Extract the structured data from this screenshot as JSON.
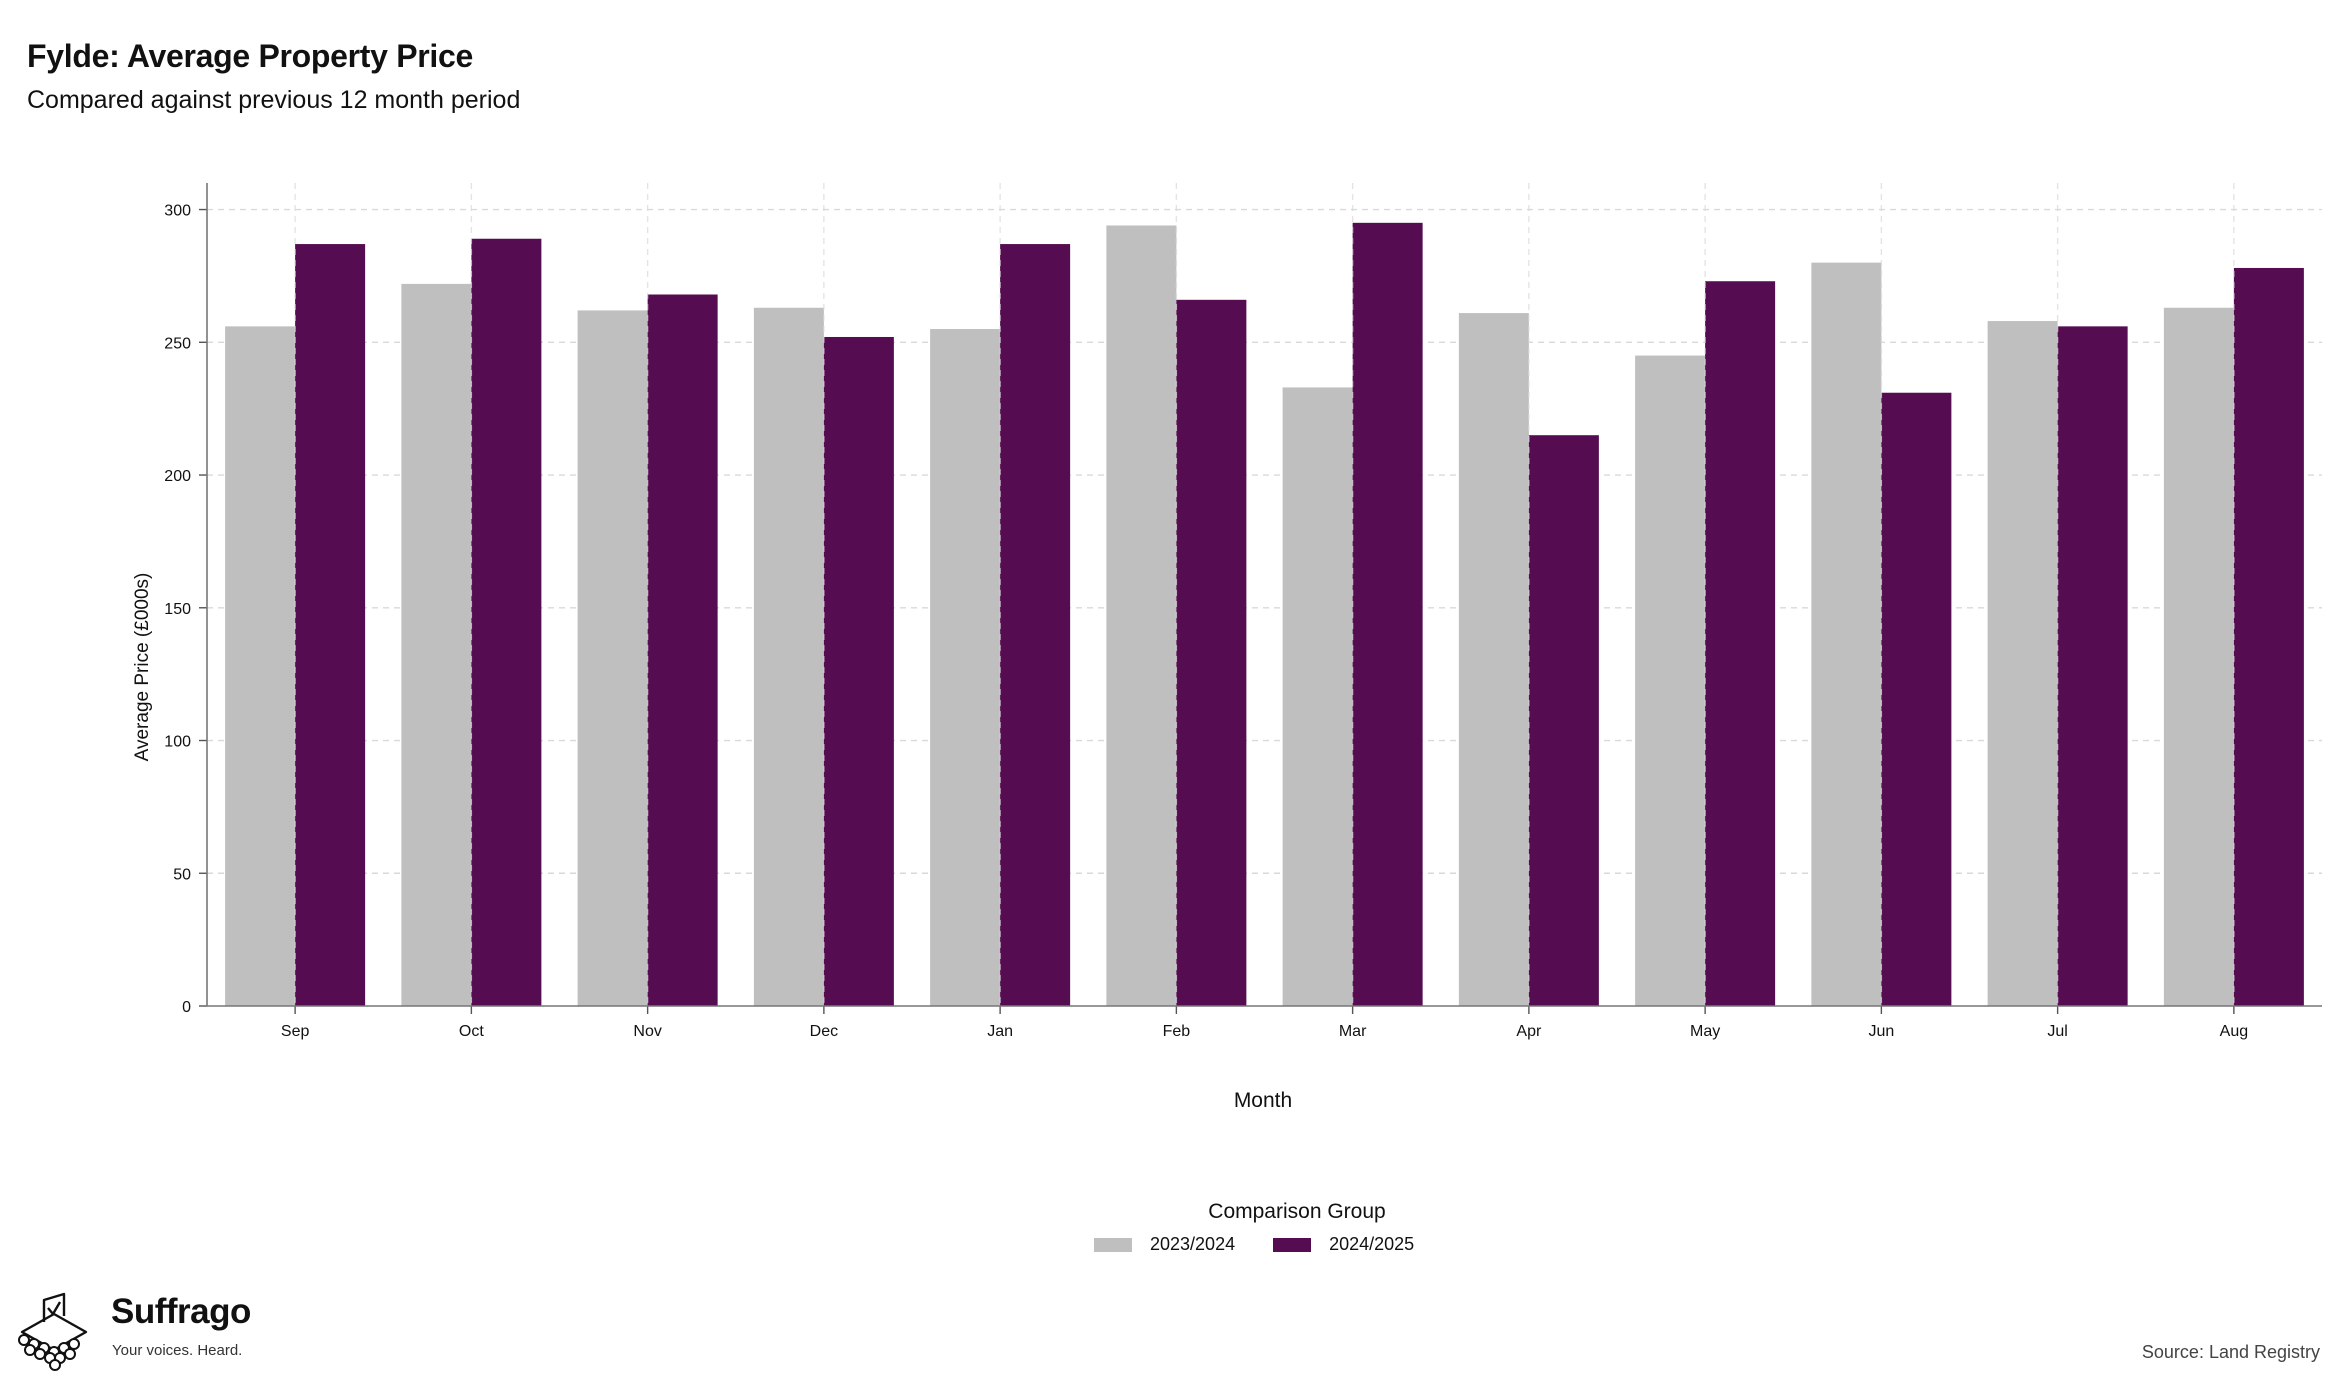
{
  "header": {
    "title": "Fylde: Average Property Price",
    "subtitle": "Compared against previous 12 month period"
  },
  "chart_data": {
    "type": "bar",
    "title": "Fylde: Average Property Price",
    "subtitle": "Compared against previous 12 month period",
    "xlabel": "Month",
    "ylabel": "Average Price (£000s)",
    "ylim": [
      0,
      310
    ],
    "yticks": [
      0,
      50,
      100,
      150,
      200,
      250,
      300
    ],
    "grid": true,
    "legend_position": "bottom",
    "legend_title": "Comparison Group",
    "categories": [
      "Sep",
      "Oct",
      "Nov",
      "Dec",
      "Jan",
      "Feb",
      "Mar",
      "Apr",
      "May",
      "Jun",
      "Jul",
      "Aug"
    ],
    "series": [
      {
        "name": "2023/2024",
        "color": "#bfbfbf",
        "values": [
          256,
          272,
          262,
          263,
          255,
          294,
          233,
          261,
          245,
          280,
          258,
          263
        ]
      },
      {
        "name": "2024/2025",
        "color": "#550c50",
        "values": [
          287,
          289,
          268,
          252,
          287,
          266,
          295,
          215,
          273,
          231,
          256,
          278
        ]
      }
    ]
  },
  "legend": {
    "title": "Comparison Group",
    "items": [
      {
        "label": "2023/2024",
        "color": "#bfbfbf"
      },
      {
        "label": "2024/2025",
        "color": "#550c50"
      }
    ]
  },
  "branding": {
    "name": "Suffrago",
    "tagline": "Your voices. Heard."
  },
  "footer": {
    "source": "Source: Land Registry"
  }
}
